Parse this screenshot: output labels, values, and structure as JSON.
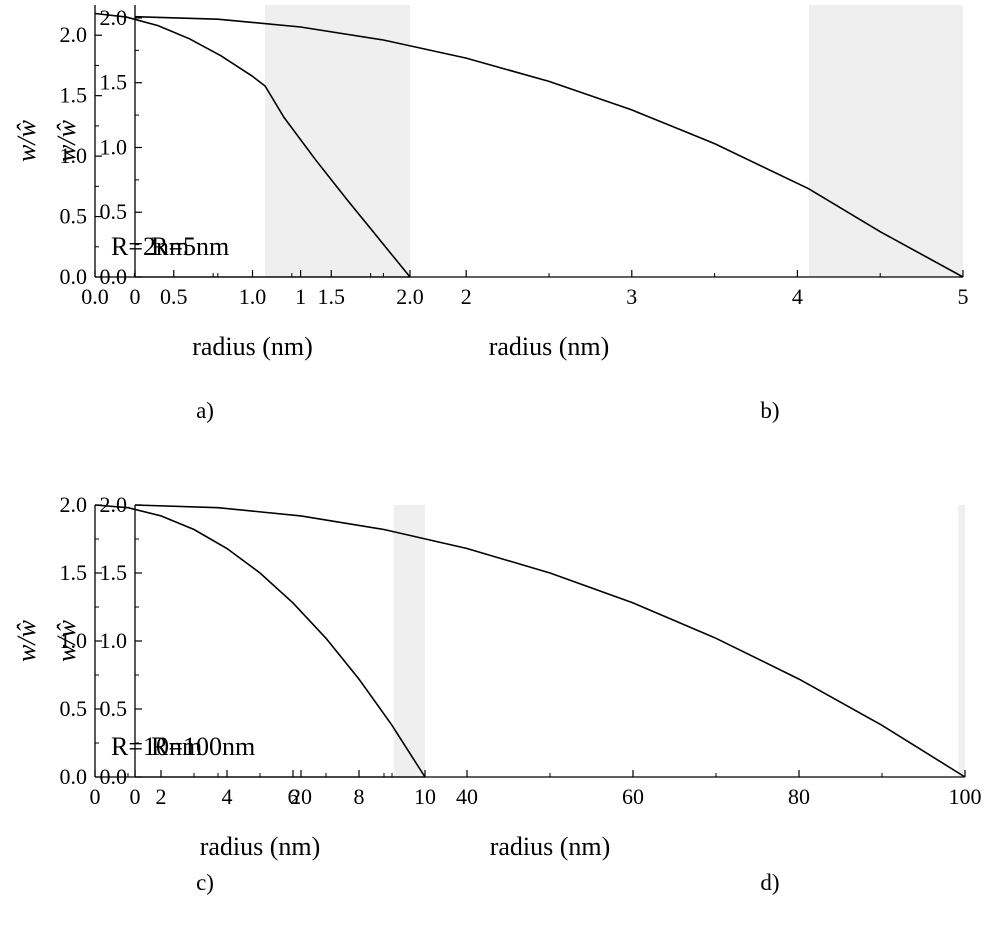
{
  "chart_data": [
    {
      "type": "line",
      "panel_label": "a)",
      "annotation": "R=2nm",
      "xlabel": "radius (nm)",
      "ylabel": "w/ŵ",
      "xlim": [
        0,
        2
      ],
      "ylim": [
        0,
        2.25
      ],
      "xticks": [
        0,
        0.5,
        1,
        1.5,
        2
      ],
      "xtick_labels": [
        "0.0",
        "0.5",
        "1.0",
        "1.5",
        "2.0"
      ],
      "yticks": [
        0,
        0.5,
        1,
        1.5,
        2
      ],
      "ytick_labels": [
        "0.0",
        "0.5",
        "1.0",
        "1.5",
        "2.0"
      ],
      "shaded_region": [
        1.08,
        2.0
      ],
      "x": [
        0,
        0.2,
        0.4,
        0.6,
        0.8,
        1.0,
        1.08,
        1.2,
        1.4,
        1.6,
        1.8,
        2.0
      ],
      "y": [
        2.18,
        2.15,
        2.08,
        1.97,
        1.83,
        1.66,
        1.58,
        1.32,
        0.97,
        0.64,
        0.32,
        0.0
      ]
    },
    {
      "type": "line",
      "panel_label": "b)",
      "annotation": "R=5nm",
      "xlabel": "radius (nm)",
      "ylabel": "w/ŵ",
      "xlim": [
        0,
        5
      ],
      "ylim": [
        0,
        2.1
      ],
      "xticks": [
        0,
        1,
        2,
        3,
        4,
        5
      ],
      "xtick_labels": [
        "0",
        "1",
        "2",
        "3",
        "4",
        "5"
      ],
      "yticks": [
        0,
        0.5,
        1,
        1.5,
        2
      ],
      "ytick_labels": [
        "0.0",
        "0.5",
        "1.0",
        "1.5",
        "2.0"
      ],
      "shaded_region": [
        4.07,
        5.0
      ],
      "x": [
        0,
        0.5,
        1,
        1.5,
        2,
        2.5,
        3,
        3.5,
        4.07,
        4.5,
        5.0
      ],
      "y": [
        2.01,
        1.99,
        1.93,
        1.83,
        1.69,
        1.51,
        1.29,
        1.03,
        0.68,
        0.35,
        0.0
      ]
    },
    {
      "type": "line",
      "panel_label": "c)",
      "annotation": "R=10nm",
      "xlabel": "radius (nm)",
      "ylabel": "w/ŵ",
      "xlim": [
        0,
        10
      ],
      "ylim": [
        0,
        2.0
      ],
      "xticks": [
        0,
        2,
        4,
        6,
        8,
        10
      ],
      "xtick_labels": [
        "0",
        "2",
        "4",
        "6",
        "8",
        "10"
      ],
      "yticks": [
        0,
        0.5,
        1,
        1.5,
        2
      ],
      "ytick_labels": [
        "0.0",
        "0.5",
        "1.0",
        "1.5",
        "2.0"
      ],
      "shaded_region": [
        9.05,
        10.0
      ],
      "x": [
        0,
        1,
        2,
        3,
        4,
        5,
        6,
        7,
        8,
        9,
        9.5,
        10
      ],
      "y": [
        2.0,
        1.98,
        1.92,
        1.82,
        1.68,
        1.5,
        1.28,
        1.02,
        0.72,
        0.38,
        0.19,
        0.0
      ]
    },
    {
      "type": "line",
      "panel_label": "d)",
      "annotation": "R=100nm",
      "xlabel": "radius (nm)",
      "ylabel": "w/ŵ",
      "xlim": [
        0,
        100
      ],
      "ylim": [
        0,
        2.0
      ],
      "xticks": [
        0,
        20,
        40,
        60,
        80,
        100
      ],
      "xtick_labels": [
        "0",
        "20",
        "40",
        "60",
        "80",
        "100"
      ],
      "yticks": [
        0,
        0.5,
        1,
        1.5,
        2
      ],
      "ytick_labels": [
        "0.0",
        "0.5",
        "1.0",
        "1.5",
        "2.0"
      ],
      "shaded_region": [
        99.2,
        100.0
      ],
      "x": [
        0,
        10,
        20,
        30,
        40,
        50,
        60,
        70,
        80,
        90,
        100
      ],
      "y": [
        2.0,
        1.98,
        1.92,
        1.82,
        1.68,
        1.5,
        1.28,
        1.02,
        0.72,
        0.38,
        0.0
      ]
    }
  ]
}
